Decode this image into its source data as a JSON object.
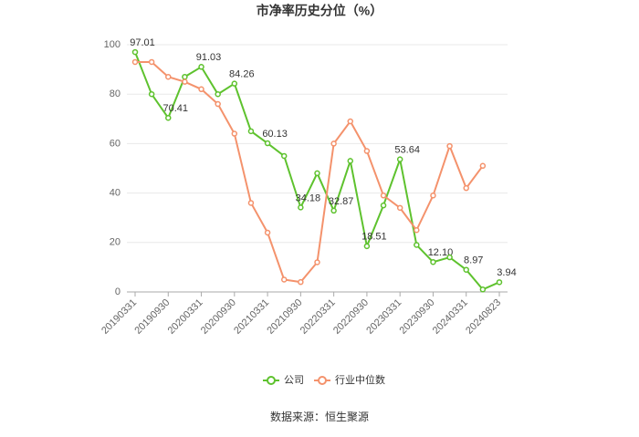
{
  "chart_data": {
    "type": "line",
    "title": "市净率历史分位（%）",
    "categories": [
      "20190331",
      null,
      "20190930",
      null,
      "20200331",
      null,
      "20200930",
      null,
      "20210331",
      null,
      "20210930",
      null,
      "20220331",
      null,
      "20220930",
      null,
      "20230331",
      null,
      "20230930",
      null,
      "20240331",
      null,
      "20240823"
    ],
    "series": [
      {
        "name": "公司",
        "color": "#5ec22e",
        "values": [
          97.01,
          80,
          70.41,
          87,
          91.03,
          80,
          84.26,
          65,
          60.13,
          55,
          34.18,
          48,
          32.87,
          53,
          18.51,
          35,
          53.64,
          19,
          12.1,
          14,
          8.97,
          1,
          3.94
        ],
        "value_labels": [
          "97.01",
          null,
          "70.41",
          null,
          "91.03",
          null,
          "84.26",
          null,
          "60.13",
          null,
          "34.18",
          null,
          "32.87",
          null,
          "18.51",
          null,
          "53.64",
          null,
          "12.10",
          null,
          "8.97",
          null,
          "3.94"
        ]
      },
      {
        "name": "行业中位数",
        "color": "#f4926c",
        "values": [
          93,
          93,
          87,
          85,
          82,
          76,
          64,
          36,
          24,
          5,
          4,
          12,
          60,
          69,
          57,
          39,
          34,
          25,
          39,
          59,
          42,
          51,
          null
        ]
      }
    ],
    "ylim": [
      0,
      100
    ],
    "yticks": [
      0,
      20,
      40,
      60,
      80,
      100
    ],
    "grid": true,
    "legend": "bottom",
    "source": "数据来源：恒生聚源"
  }
}
